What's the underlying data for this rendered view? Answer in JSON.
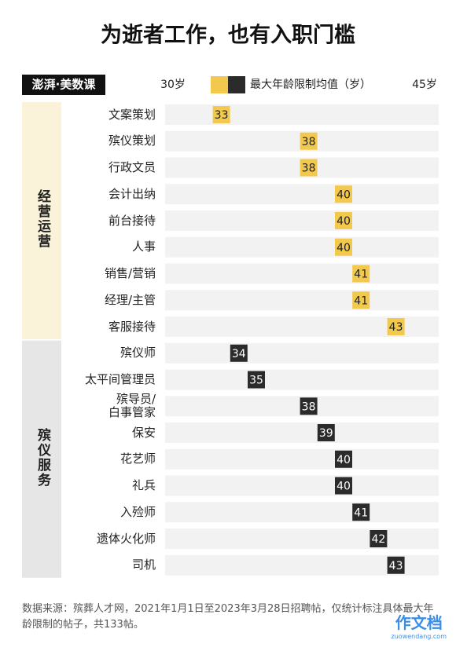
{
  "chart_data": {
    "type": "dot",
    "title": "为逝者工作，也有入职门槛",
    "brand": "澎湃·美数课",
    "legend_label": "最大年龄限制均值（岁）",
    "xlim": [
      30,
      45
    ],
    "xticks": [
      {
        "value": 30,
        "label": "30岁"
      },
      {
        "value": 45,
        "label": "45岁"
      }
    ],
    "series": [
      {
        "name": "经营运营",
        "color": "#f2c94c",
        "text_color": "#222",
        "box_color": "#fbf3d9",
        "categories": [
          "文案策划",
          "殡仪策划",
          "行政文员",
          "会计出纳",
          "前台接待",
          "人事",
          "销售/营销",
          "经理/主管",
          "客服接待"
        ],
        "values": [
          33,
          38,
          38,
          40,
          40,
          40,
          41,
          41,
          43
        ]
      },
      {
        "name": "殡仪服务",
        "color": "#2b2b2b",
        "text_color": "#fff",
        "box_color": "#e6e6e6",
        "categories": [
          "殡仪师",
          "太平间管理员",
          "殡导员/\n白事管家",
          "保安",
          "花艺师",
          "礼兵",
          "入殓师",
          "遗体火化师",
          "司机"
        ],
        "values": [
          34,
          35,
          38,
          39,
          40,
          40,
          41,
          42,
          43
        ]
      }
    ],
    "source": "数据来源：殡葬人才网，2021年1月1日至2023年3月28日招聘帖，仅统计标注具体最大年龄限制的帖子，共133帖。",
    "watermark": "作文档",
    "watermark_url": "zuowendang.com"
  }
}
